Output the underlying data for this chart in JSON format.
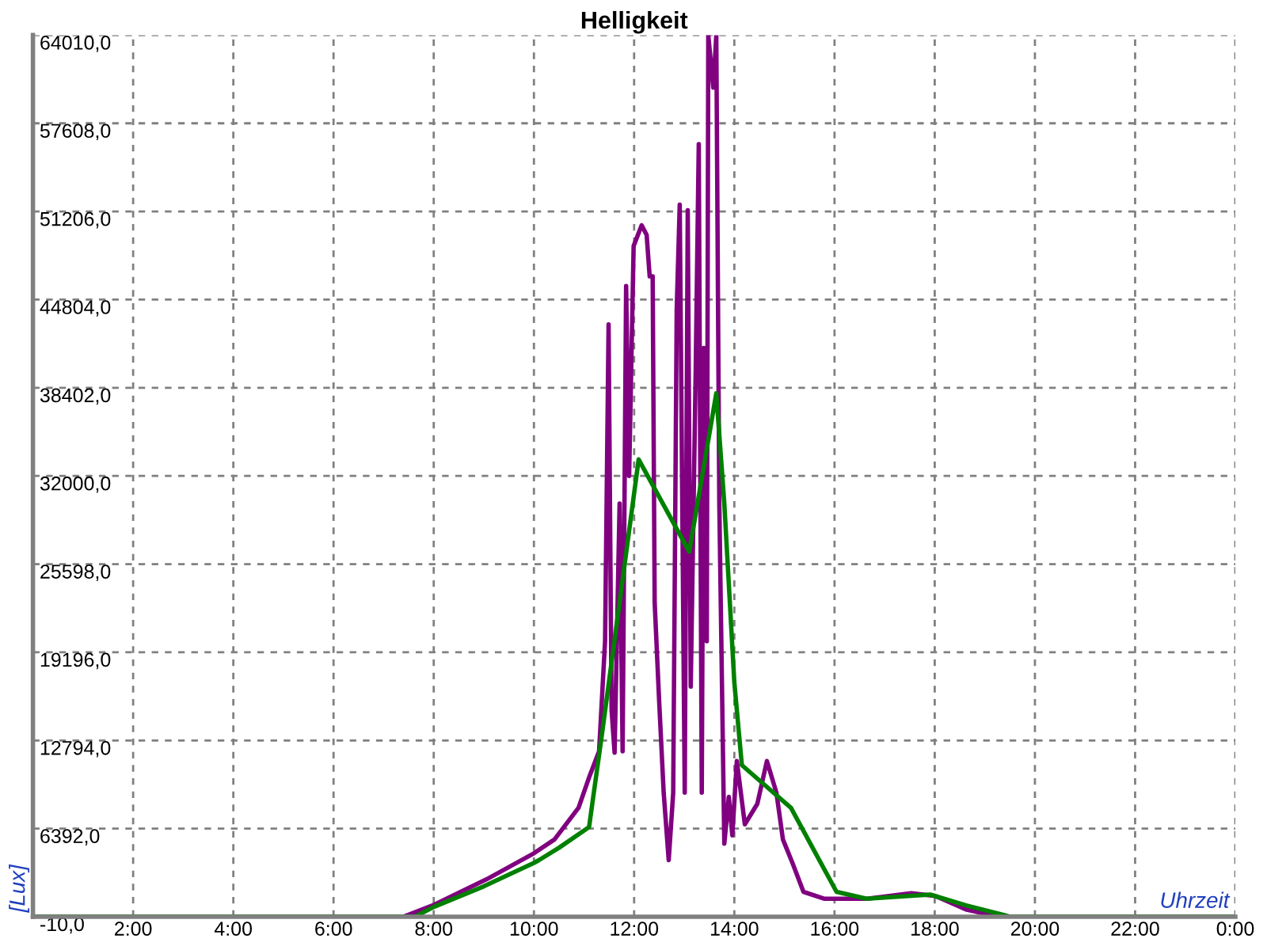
{
  "chart_data": {
    "type": "line",
    "title": "Helligkeit",
    "xlabel": "Uhrzeit",
    "ylabel": "[Lux]",
    "xlim": [
      0,
      24
    ],
    "ylim": [
      -10,
      64010
    ],
    "xticks": [
      {
        "value": 2,
        "label": "2:00"
      },
      {
        "value": 4,
        "label": "4:00"
      },
      {
        "value": 6,
        "label": "6:00"
      },
      {
        "value": 8,
        "label": "8:00"
      },
      {
        "value": 10,
        "label": "10:00"
      },
      {
        "value": 12,
        "label": "12:00"
      },
      {
        "value": 14,
        "label": "14:00"
      },
      {
        "value": 16,
        "label": "16:00"
      },
      {
        "value": 18,
        "label": "18:00"
      },
      {
        "value": 20,
        "label": "20:00"
      },
      {
        "value": 22,
        "label": "22:00"
      },
      {
        "value": 24,
        "label": "0:00"
      }
    ],
    "yticks": [
      {
        "value": -10,
        "label": "-10,0"
      },
      {
        "value": 6392,
        "label": "6392,0"
      },
      {
        "value": 12794,
        "label": "12794,0"
      },
      {
        "value": 19196,
        "label": "19196,0"
      },
      {
        "value": 25598,
        "label": "25598,0"
      },
      {
        "value": 32000,
        "label": "32000,0"
      },
      {
        "value": 38402,
        "label": "38402,0"
      },
      {
        "value": 44804,
        "label": "44804,0"
      },
      {
        "value": 51206,
        "label": "51206,0"
      },
      {
        "value": 57608,
        "label": "57608,0"
      },
      {
        "value": 64010,
        "label": "64010,0"
      }
    ],
    "grid": true,
    "marker": "none",
    "line_style": "solid",
    "series": [
      {
        "color": "#800080",
        "x": [
          0,
          7.4,
          7.97,
          9.05,
          10.0,
          10.41,
          10.89,
          11.11,
          11.3,
          11.42,
          11.49,
          11.55,
          11.61,
          11.71,
          11.77,
          11.84,
          11.9,
          11.99,
          12.15,
          12.25,
          12.31,
          12.37,
          12.41,
          12.5,
          12.59,
          12.69,
          12.78,
          12.85,
          12.91,
          13.01,
          13.07,
          13.13,
          13.23,
          13.29,
          13.35,
          13.39,
          13.45,
          13.48,
          13.58,
          13.64,
          13.7,
          13.8,
          13.89,
          13.96,
          14.05,
          14.21,
          14.46,
          14.65,
          14.84,
          14.97,
          15.16,
          15.38,
          15.79,
          16.65,
          17.53,
          18.01,
          18.64,
          19.27,
          24
        ],
        "values": [
          0,
          0,
          800,
          2700,
          4600,
          5600,
          7900,
          10200,
          12000,
          20000,
          43000,
          15000,
          11900,
          30000,
          12000,
          45800,
          32000,
          48700,
          50200,
          49500,
          46500,
          46500,
          22800,
          15600,
          9000,
          4100,
          9000,
          44100,
          51700,
          9000,
          51300,
          16700,
          40000,
          56100,
          9000,
          41300,
          20000,
          64010,
          60200,
          64010,
          30000,
          5300,
          8700,
          5900,
          11300,
          6700,
          8200,
          11300,
          9000,
          5600,
          3900,
          1800,
          1300,
          1300,
          1700,
          1500,
          500,
          0,
          0
        ]
      },
      {
        "color": "#008000",
        "x": [
          0,
          7.63,
          8.0,
          9.0,
          10.0,
          10.1,
          10.5,
          11.1,
          11.36,
          12.09,
          13.1,
          13.64,
          13.8,
          14.0,
          14.15,
          15.13,
          16.04,
          16.64,
          17.91,
          18.64,
          19.5,
          24
        ],
        "values": [
          0,
          0,
          700,
          2200,
          3900,
          4100,
          5000,
          6500,
          13300,
          33200,
          26500,
          38000,
          30000,
          17000,
          11000,
          7900,
          1800,
          1300,
          1600,
          800,
          0,
          0
        ]
      }
    ]
  }
}
